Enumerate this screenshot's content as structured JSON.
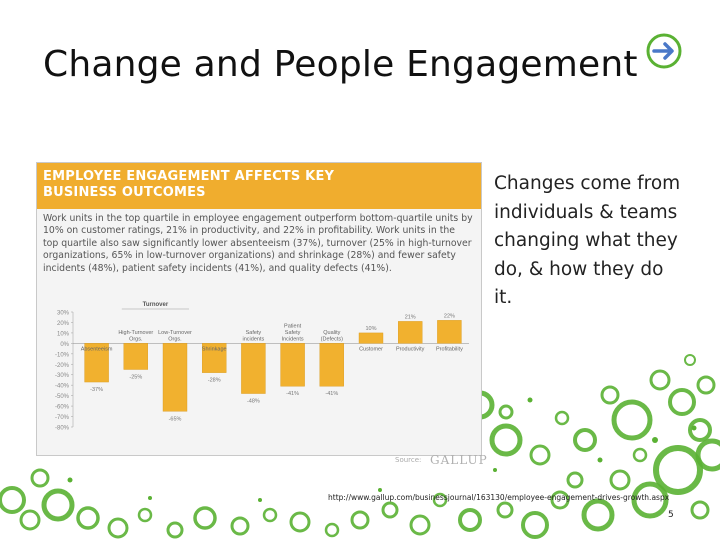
{
  "slide": {
    "title": "Change and People Engagement",
    "side_text": "Changes come from individuals & teams changing what they do, & how they do it.",
    "footer_link": "http://www.gallup.com/businessjournal/163130/employee-engagement-drives-growth.aspx",
    "page_number": "5",
    "nav_icon": "arrow-right-circle-icon",
    "colors": {
      "accent_green": "#5ab133",
      "nav_blue": "#4a78c8",
      "bar_gold": "#f1b12f",
      "header_gold": "#f0ad2e"
    }
  },
  "figure": {
    "heading_line1": "EMPLOYEE ENGAGEMENT AFFECTS KEY",
    "heading_line2": "BUSINESS OUTCOMES",
    "description": "Work units in the top quartile in employee engagement outperform bottom-quartile units by 10% on customer ratings, 21% in productivity, and 22% in profitability. Work units in the top quartile also saw significantly lower absenteeism (37%), turnover (25% in high-turnover organizations, 65% in low-turnover organizations) and shrinkage (28%) and fewer safety incidents (48%), patient safety incidents (41%), and quality defects (41%).",
    "source_label": "Source:",
    "source_name": "GALLUP"
  },
  "chart_data": {
    "type": "bar",
    "group_label": "Turnover",
    "categories": [
      "Absenteeism",
      "High-Turnover Orgs.",
      "Low-Turnover Orgs.",
      "Shrinkage",
      "Safety incidents",
      "Patient Safety Incidents",
      "Quality (Defects)",
      "Customer",
      "Productivity",
      "Profitability"
    ],
    "values": [
      -37,
      -25,
      -65,
      -28,
      -48,
      -41,
      -41,
      10,
      21,
      22
    ],
    "value_labels": [
      "-37%",
      "-25%",
      "-65%",
      "-28%",
      "-48%",
      "-41%",
      "-41%",
      "10%",
      "21%",
      "22%"
    ],
    "y_ticks": [
      "30%",
      "20%",
      "10%",
      "0%",
      "-10%",
      "-20%",
      "-30%",
      "-40%",
      "-50%",
      "-60%",
      "-70%",
      "-80%"
    ],
    "ylim": [
      -80,
      30
    ],
    "grid": false
  }
}
